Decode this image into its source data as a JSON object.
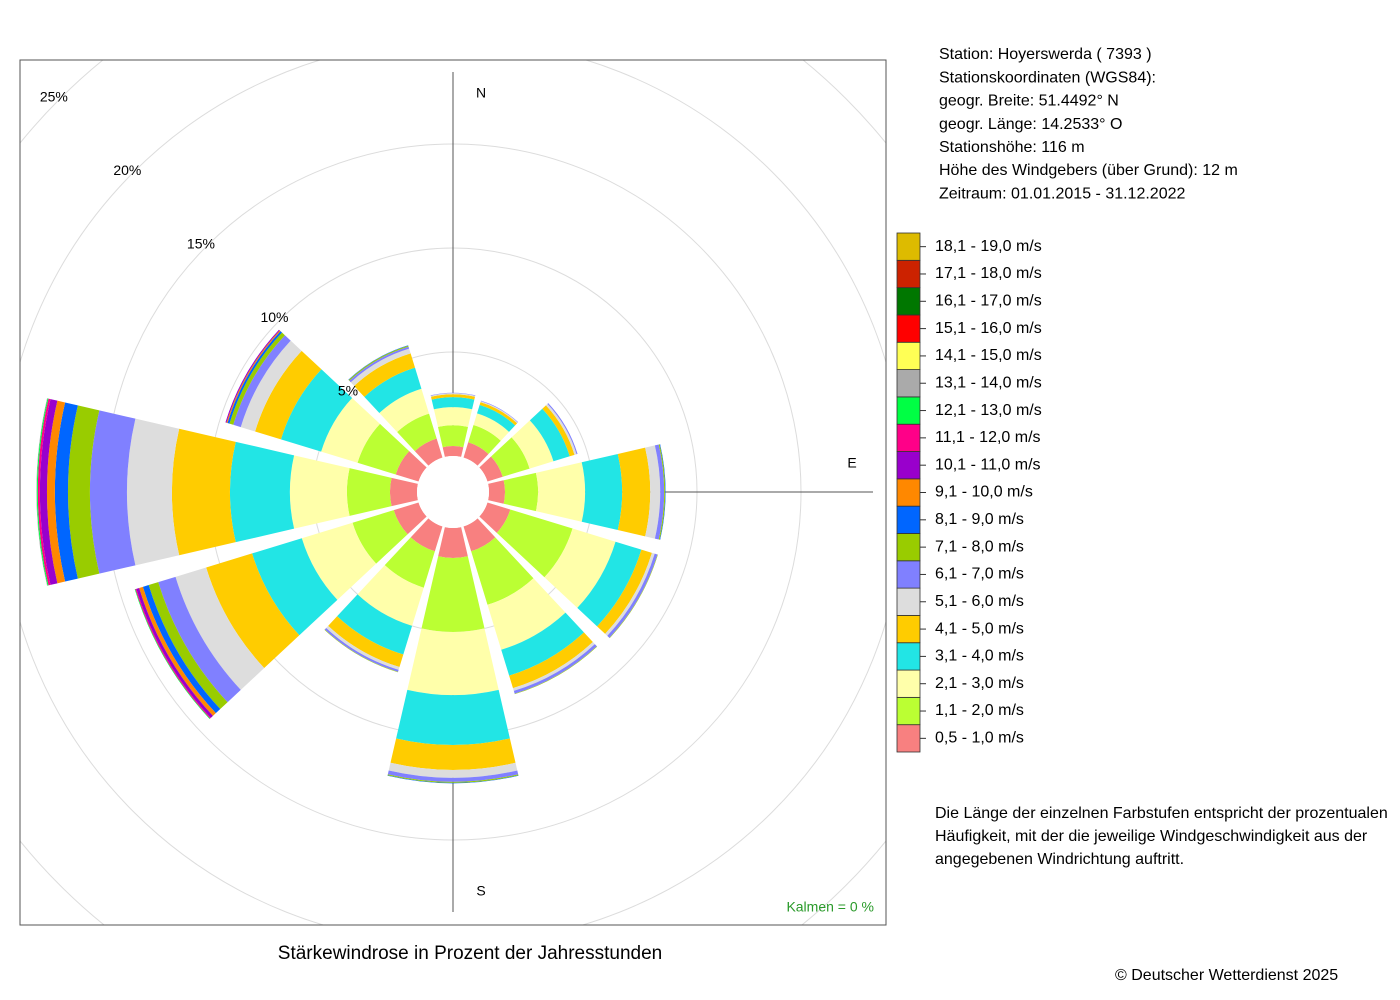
{
  "chart_data": {
    "type": "windrose",
    "title": "Stärkewindrose in Prozent der Jahresstunden",
    "categories": [
      "N",
      null,
      null,
      "E",
      null,
      null,
      "S",
      null,
      null,
      null,
      null,
      null
    ],
    "rlim": [
      0,
      25
    ],
    "rticks": [
      {
        "value": 5,
        "label": "5%"
      },
      {
        "value": 10,
        "label": "10%"
      },
      {
        "value": 15,
        "label": "15%"
      },
      {
        "value": 20,
        "label": "20%"
      },
      {
        "value": 25,
        "label": "25%"
      }
    ],
    "grid": true,
    "calm": {
      "value": 0,
      "label": "Kalmen  =  0 %"
    },
    "series": [
      {
        "name": "0,5 - 1,0 m/s",
        "color": "#f88080",
        "values": [
          0.48,
          0.77,
          0.77,
          0.77,
          1.15,
          1.25,
          1.44,
          1.25,
          1.25,
          1.3,
          1.15,
          0.96
        ]
      },
      {
        "name": "1,1 - 2,0 m/s",
        "color": "#bbff33",
        "values": [
          1.0,
          0.87,
          1.35,
          1.59,
          3.13,
          2.69,
          3.56,
          1.83,
          2.07,
          2.07,
          1.92,
          1.25
        ]
      },
      {
        "name": "2,1 - 3,0 m/s",
        "color": "#ffffaa",
        "values": [
          0.87,
          0.58,
          1.2,
          2.26,
          2.16,
          2.26,
          3.03,
          1.92,
          2.55,
          2.74,
          1.83,
          1.25
        ]
      },
      {
        "name": "3,1 - 4,0 m/s",
        "color": "#22e5e5",
        "values": [
          0.48,
          0.43,
          0.82,
          1.78,
          1.3,
          1.3,
          2.4,
          1.44,
          2.5,
          2.88,
          2.02,
          1.06
        ]
      },
      {
        "name": "4,1 - 5,0 m/s",
        "color": "#ffcc00",
        "values": [
          0.14,
          0.14,
          0.24,
          1.35,
          0.53,
          0.63,
          1.2,
          0.63,
          2.31,
          2.79,
          1.3,
          0.72
        ]
      },
      {
        "name": "5,1 - 6,0 m/s",
        "color": "#dddddd",
        "values": [
          0.05,
          0.05,
          0.1,
          0.48,
          0.14,
          0.14,
          0.38,
          0.14,
          1.54,
          2.16,
          0.72,
          0.24
        ]
      },
      {
        "name": "6,1 - 7,0 m/s",
        "color": "#8080ff",
        "values": [
          0.02,
          0.02,
          0.05,
          0.19,
          0.14,
          0.14,
          0.19,
          0.1,
          0.87,
          1.78,
          0.38,
          0.1
        ]
      },
      {
        "name": "7,1 - 8,0 m/s",
        "color": "#99cc00",
        "values": [
          0,
          0,
          0,
          0.05,
          0.02,
          0.02,
          0.05,
          0.02,
          0.48,
          1.06,
          0.19,
          0.05
        ]
      },
      {
        "name": "8,1 - 9,0 m/s",
        "color": "#0066ff",
        "values": [
          0,
          0,
          0,
          0.02,
          0,
          0,
          0.02,
          0,
          0.29,
          0.63,
          0.1,
          0.02
        ]
      },
      {
        "name": "9,1 - 10,0 m/s",
        "color": "#ff8800",
        "values": [
          0,
          0,
          0,
          0,
          0,
          0,
          0,
          0,
          0.19,
          0.38,
          0.05,
          0
        ]
      },
      {
        "name": "10,1 - 11,0 m/s",
        "color": "#9900cc",
        "values": [
          0,
          0,
          0,
          0,
          0,
          0,
          0,
          0,
          0.14,
          0.34,
          0.05,
          0
        ]
      },
      {
        "name": "11,1 - 12,0 m/s",
        "color": "#ff0088",
        "values": [
          0,
          0,
          0,
          0,
          0,
          0,
          0,
          0,
          0.05,
          0.1,
          0,
          0
        ]
      },
      {
        "name": "12,1 - 13,0 m/s",
        "color": "#00ff44",
        "values": [
          0,
          0,
          0,
          0,
          0,
          0,
          0,
          0,
          0.03,
          0.05,
          0,
          0
        ]
      },
      {
        "name": "13,1 - 14,0 m/s",
        "color": "#aaaaaa",
        "values": [
          0,
          0,
          0,
          0,
          0,
          0,
          0,
          0,
          0,
          0.02,
          0,
          0
        ]
      },
      {
        "name": "14,1 - 15,0 m/s",
        "color": "#ffff55",
        "values": [
          0,
          0,
          0,
          0,
          0,
          0,
          0,
          0,
          0,
          0,
          0,
          0
        ]
      },
      {
        "name": "15,1 - 16,0 m/s",
        "color": "#ff0000",
        "values": [
          0,
          0,
          0,
          0,
          0,
          0,
          0,
          0,
          0,
          0,
          0,
          0
        ]
      },
      {
        "name": "16,1 - 17,0 m/s",
        "color": "#007700",
        "values": [
          0,
          0,
          0,
          0,
          0,
          0,
          0,
          0,
          0,
          0,
          0,
          0
        ]
      },
      {
        "name": "17,1 - 18,0 m/s",
        "color": "#cc2200",
        "values": [
          0,
          0,
          0,
          0,
          0,
          0,
          0,
          0,
          0,
          0,
          0,
          0
        ]
      },
      {
        "name": "18,1 - 19,0 m/s",
        "color": "#ddbb00",
        "values": [
          0,
          0,
          0,
          0,
          0,
          0,
          0,
          0,
          0,
          0,
          0,
          0
        ]
      }
    ]
  },
  "info": [
    "Station:  Hoyerswerda  ( 7393 )",
    "Stationskoordinaten (WGS84):",
    "geogr. Breite: 51.4492° N",
    "geogr. Länge: 14.2533° O",
    "Stationshöhe: 116 m",
    "Höhe des Windgebers (über Grund): 12 m",
    "Zeitraum: 01.01.2015 - 31.12.2022"
  ],
  "note": [
    "Die Länge der einzelnen Farbstufen entspricht der prozentualen",
    "Häufigkeit, mit der die jeweilige Windgeschwindigkeit aus der",
    "angegebenen Windrichtung auftritt."
  ],
  "copyright": "© Deutscher Wetterdienst  2025"
}
